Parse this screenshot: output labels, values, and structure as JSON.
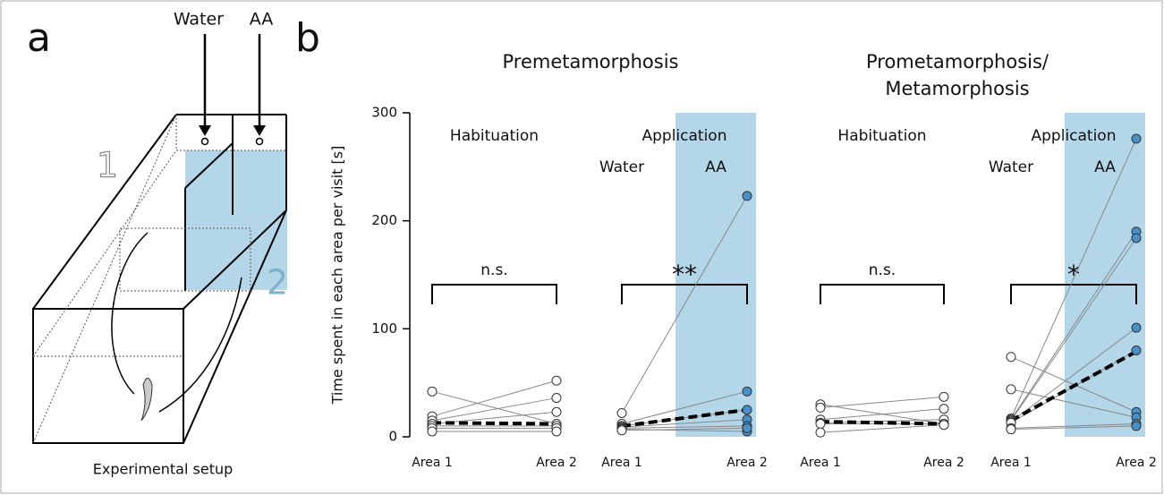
{
  "panel_a": {
    "label": "a",
    "water": "Water",
    "aa": "AA",
    "area1": "1",
    "area2": "2",
    "caption": "Experimental setup"
  },
  "panel_b_label": "b",
  "group_titles": [
    [
      "Premetamorphosis"
    ],
    [
      "Prometamorphosis/",
      "Metamorphosis"
    ]
  ],
  "y_label": "Time spent in each area per visit [s]",
  "chart_data": [
    {
      "type": "paired",
      "title": "Habituation",
      "categories": [
        "Area 1",
        "Area 2"
      ],
      "ylim": [
        0,
        300
      ],
      "yticks": [
        0,
        100,
        200,
        300
      ],
      "pairs": [
        [
          42,
          12
        ],
        [
          19,
          52
        ],
        [
          15,
          36
        ],
        [
          12,
          23
        ],
        [
          10,
          10
        ],
        [
          8,
          8
        ],
        [
          5,
          5
        ]
      ],
      "mean": [
        13,
        12
      ],
      "significance": "n.s."
    },
    {
      "type": "paired",
      "title": "Application",
      "sublabels": [
        "Water",
        "AA"
      ],
      "categories": [
        "Area 1",
        "Area 2"
      ],
      "ylim": [
        0,
        300
      ],
      "shade_color": "#b3d6e8",
      "point_color": "#4a90c8",
      "pairs": [
        [
          22,
          223
        ],
        [
          12,
          42
        ],
        [
          10,
          25
        ],
        [
          9,
          16
        ],
        [
          8,
          10
        ],
        [
          7,
          5
        ],
        [
          6,
          8
        ]
      ],
      "mean": [
        10,
        25
      ],
      "significance": "**"
    },
    {
      "type": "paired",
      "title": "Habituation",
      "categories": [
        "Area 1",
        "Area 2"
      ],
      "ylim": [
        0,
        300
      ],
      "pairs": [
        [
          30,
          12
        ],
        [
          27,
          37
        ],
        [
          16,
          26
        ],
        [
          13,
          16
        ],
        [
          12,
          12
        ],
        [
          4,
          11
        ]
      ],
      "mean": [
        14,
        12
      ],
      "significance": "n.s."
    },
    {
      "type": "paired",
      "title": "Application",
      "sublabels": [
        "Water",
        "AA"
      ],
      "categories": [
        "Area 1",
        "Area 2"
      ],
      "ylim": [
        0,
        300
      ],
      "shade_color": "#b3d6e8",
      "point_color": "#4a90c8",
      "pairs": [
        [
          74,
          23
        ],
        [
          44,
          18
        ],
        [
          17,
          276
        ],
        [
          16,
          190
        ],
        [
          15,
          184
        ],
        [
          14,
          101
        ],
        [
          13,
          80
        ],
        [
          8,
          12
        ],
        [
          7,
          10
        ]
      ],
      "mean": [
        15,
        79
      ],
      "significance": "*"
    }
  ]
}
